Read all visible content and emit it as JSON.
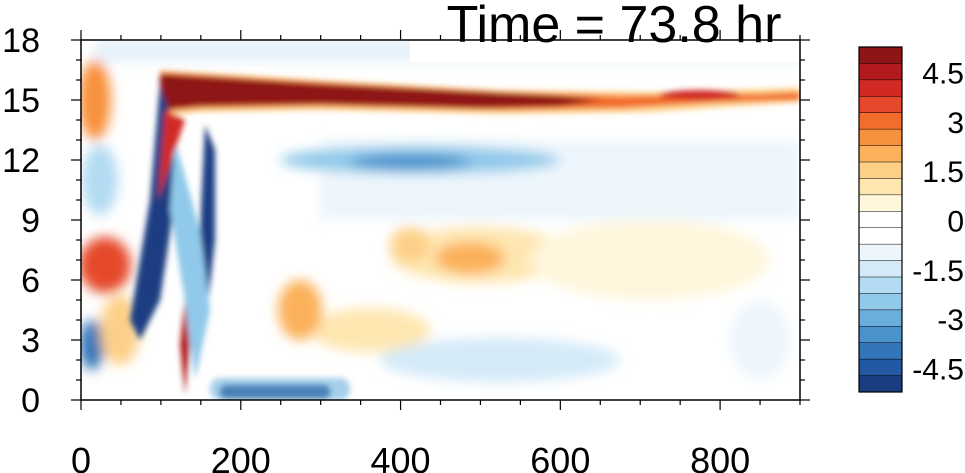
{
  "chart_data": {
    "type": "heatmap",
    "title": "Time = 73.8 hr",
    "xlabel": "",
    "ylabel": "",
    "xlim": [
      0,
      900
    ],
    "ylim": [
      0,
      18
    ],
    "x_ticks": [
      0,
      200,
      400,
      600,
      800
    ],
    "x_tick_labels": [
      "0",
      "200",
      "400",
      "600",
      "800"
    ],
    "y_ticks": [
      0,
      3,
      6,
      9,
      12,
      15,
      18
    ],
    "y_tick_labels": [
      "0",
      "3",
      "6",
      "9",
      "12",
      "15",
      "18"
    ],
    "colorbar": {
      "levels": [
        -5.5,
        -5,
        -4.5,
        -4,
        -3.5,
        -3,
        -2.5,
        -2,
        -1.5,
        -1,
        -0.5,
        0,
        0.5,
        1,
        1.5,
        2,
        2.5,
        3,
        3.5,
        4,
        4.5,
        5,
        5.5
      ],
      "tick_values": [
        4.5,
        3,
        1.5,
        0,
        -1.5,
        -3,
        -4.5
      ],
      "tick_labels": [
        "4.5",
        "3",
        "1.5",
        "0",
        "-1.5",
        "-3",
        "-4.5"
      ],
      "colors_top_to_bottom": [
        "#8e1516",
        "#b31a1e",
        "#d12a25",
        "#e5482a",
        "#f26c2c",
        "#f8913d",
        "#fbb15a",
        "#fdd088",
        "#fee6b0",
        "#fff6dc",
        "#ffffff",
        "#ffffff",
        "#edf6fc",
        "#d4eaf8",
        "#b3dbf3",
        "#90c9ea",
        "#6aafdc",
        "#4a92cc",
        "#3275b8",
        "#2358a2",
        "#1a3d82"
      ]
    },
    "features": [
      {
        "name": "upper warm band",
        "sign": "positive",
        "x_range": [
          95,
          900
        ],
        "y_range": [
          13.8,
          16.5
        ],
        "peak": 5.5
      },
      {
        "name": "blue band near 12",
        "sign": "negative",
        "x_range": [
          290,
          560
        ],
        "y_range": [
          11.5,
          12.8
        ],
        "peak": -3.5
      },
      {
        "name": "warm patches near 7",
        "sign": "positive",
        "x_range": [
          380,
          560
        ],
        "y_range": [
          5.5,
          8.5
        ],
        "peak": 2.5
      },
      {
        "name": "dark blue diagonal bands",
        "sign": "negative",
        "x_range": [
          95,
          215
        ],
        "y_range": [
          0,
          16
        ],
        "peak": -5.5
      },
      {
        "name": "near-surface blue",
        "sign": "negative",
        "x_range": [
          220,
          330
        ],
        "y_range": [
          0,
          0.8
        ],
        "peak": -5
      }
    ]
  }
}
